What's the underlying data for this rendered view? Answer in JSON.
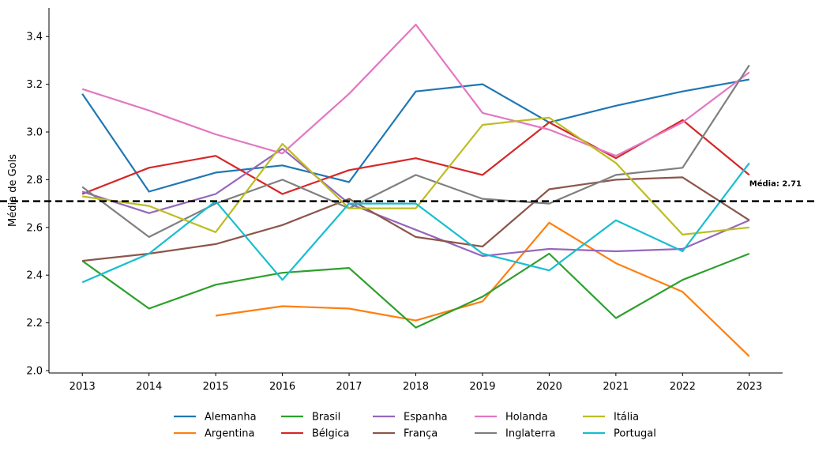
{
  "chart_data": {
    "type": "line",
    "title": "",
    "xlabel": "",
    "ylabel": "Média de Gols",
    "ylim": [
      1.99,
      3.52
    ],
    "xlim": [
      2012.5,
      2023.5
    ],
    "yticks": [
      2.0,
      2.2,
      2.4,
      2.6,
      2.8,
      3.0,
      3.2,
      3.4
    ],
    "ytick_labels": [
      "2.0",
      "2.2",
      "2.4",
      "2.6",
      "2.8",
      "3.0",
      "3.2",
      "3.4"
    ],
    "x": [
      2013,
      2014,
      2015,
      2016,
      2017,
      2018,
      2019,
      2020,
      2021,
      2022,
      2023
    ],
    "xtick_labels": [
      "2013",
      "2014",
      "2015",
      "2016",
      "2017",
      "2018",
      "2019",
      "2020",
      "2021",
      "2022",
      "2023"
    ],
    "grid": false,
    "legend_position": "bottom-center",
    "series": [
      {
        "name": "Alemanha",
        "color": "#1f77b4",
        "values": [
          3.16,
          2.75,
          2.83,
          2.86,
          2.79,
          3.17,
          3.2,
          3.04,
          3.11,
          3.17,
          3.22
        ]
      },
      {
        "name": "Argentina",
        "color": "#ff7f0e",
        "values": [
          null,
          null,
          2.23,
          2.27,
          2.26,
          2.21,
          2.29,
          2.62,
          2.45,
          2.33,
          2.06
        ]
      },
      {
        "name": "Brasil",
        "color": "#2ca02c",
        "values": [
          2.46,
          2.26,
          2.36,
          2.41,
          2.43,
          2.18,
          2.31,
          2.49,
          2.22,
          2.38,
          2.49
        ]
      },
      {
        "name": "Bélgica",
        "color": "#d62728",
        "values": [
          2.74,
          2.85,
          2.9,
          2.74,
          2.84,
          2.89,
          2.82,
          3.04,
          2.89,
          3.05,
          2.82
        ]
      },
      {
        "name": "Espanha",
        "color": "#9467bd",
        "values": [
          2.75,
          2.66,
          2.74,
          2.93,
          2.7,
          2.59,
          2.48,
          2.51,
          2.5,
          2.51,
          2.63
        ]
      },
      {
        "name": "França",
        "color": "#8c564b",
        "values": [
          2.46,
          2.49,
          2.53,
          2.61,
          2.72,
          2.56,
          2.52,
          2.76,
          2.8,
          2.81,
          2.63
        ]
      },
      {
        "name": "Holanda",
        "color": "#e377c2",
        "values": [
          3.18,
          3.09,
          2.99,
          2.91,
          3.16,
          3.45,
          3.08,
          3.01,
          2.9,
          3.04,
          3.25
        ]
      },
      {
        "name": "Inglaterra",
        "color": "#7f7f7f",
        "values": [
          2.77,
          2.56,
          2.7,
          2.8,
          2.68,
          2.82,
          2.72,
          2.7,
          2.82,
          2.85,
          3.28
        ]
      },
      {
        "name": "Itália",
        "color": "#bcbd22",
        "values": [
          2.73,
          2.69,
          2.58,
          2.95,
          2.68,
          2.68,
          3.03,
          3.06,
          2.87,
          2.57,
          2.6
        ]
      },
      {
        "name": "Portugal",
        "color": "#17becf",
        "values": [
          2.37,
          2.49,
          2.71,
          2.38,
          2.7,
          2.7,
          2.49,
          2.42,
          2.63,
          2.5,
          2.87
        ]
      }
    ],
    "reference_line": {
      "value": 2.71,
      "label": "Média: 2.71",
      "color": "#000000",
      "style": "dashed"
    }
  }
}
